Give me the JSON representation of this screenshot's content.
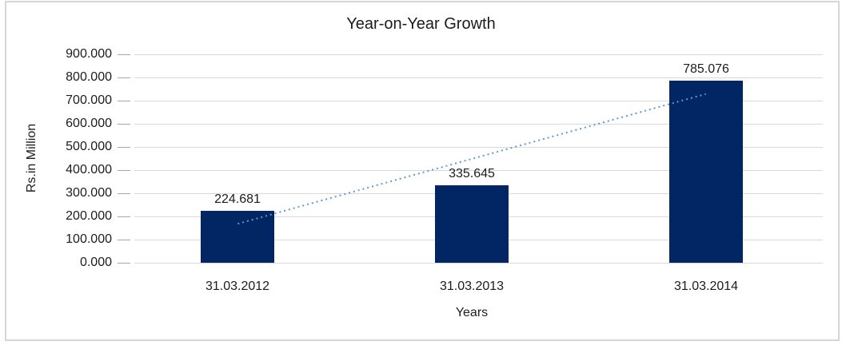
{
  "chart_data": {
    "type": "bar",
    "title": "Year-on-Year Growth",
    "xlabel": "Years",
    "ylabel": "Rs.in Million",
    "categories": [
      "31.03.2012",
      "31.03.2013",
      "31.03.2014"
    ],
    "values": [
      224.681,
      335.645,
      785.076
    ],
    "value_labels": [
      "224.681",
      "335.645",
      "785.076"
    ],
    "ylim": [
      0,
      900
    ],
    "ytick_step": 100,
    "ytick_labels": [
      "0.000",
      "100.000",
      "200.000",
      "300.000",
      "400.000",
      "500.000",
      "600.000",
      "700.000",
      "800.000",
      "900.000"
    ],
    "grid": true,
    "legend": "none",
    "trendline": {
      "type": "linear",
      "style": "dotted"
    },
    "colors": {
      "bar": "#022663",
      "trendline": "#5b9bd5",
      "gridline": "#d9d9d9",
      "tick": "#a6a6a6",
      "frame_border": "#d6d6d6",
      "text": "#1c1c1c",
      "background": "#ffffff"
    }
  }
}
